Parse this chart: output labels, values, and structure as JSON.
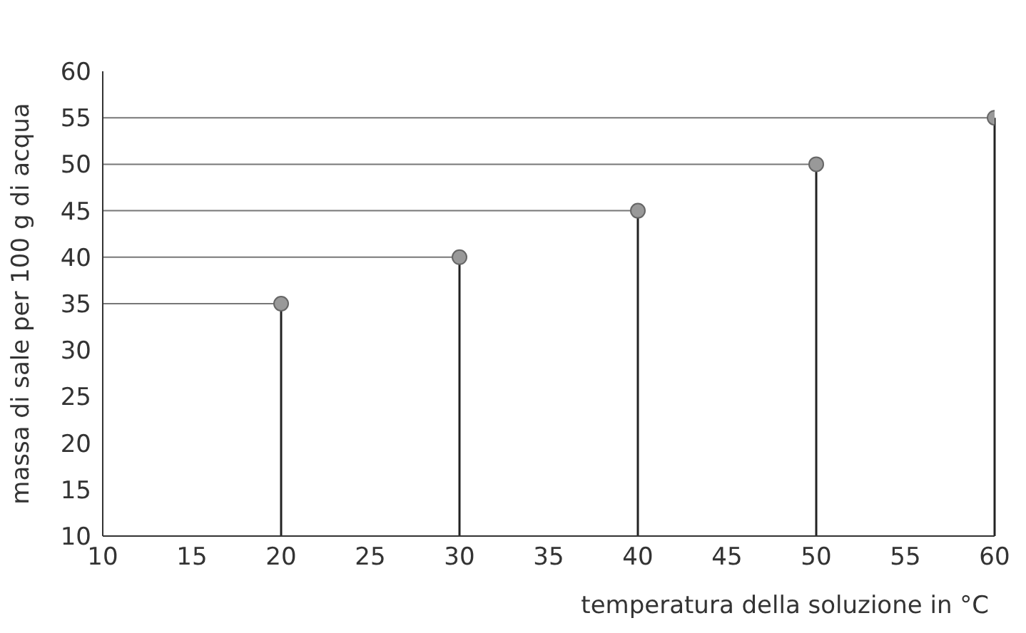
{
  "chart_data": {
    "type": "lollipop",
    "xlabel": "temperatura della soluzione in °C",
    "ylabel": "massa di sale per 100 g di acqua",
    "x": [
      20,
      30,
      40,
      50,
      60
    ],
    "values": [
      35,
      40,
      45,
      50,
      55
    ],
    "color": "#999999",
    "xlim": [
      10,
      60
    ],
    "xticks": [
      10,
      15,
      20,
      25,
      30,
      35,
      40,
      45,
      50,
      55,
      60
    ],
    "ylim": [
      10,
      60
    ],
    "yticks": [
      10,
      15,
      20,
      25,
      30,
      35,
      40,
      45,
      50,
      55,
      60
    ],
    "ref_lines": [
      {
        "axis": "y",
        "value": 35,
        "color": "#777777"
      },
      {
        "axis": "y",
        "value": 40,
        "color": "#777777"
      },
      {
        "axis": "y",
        "value": 45,
        "color": "#777777"
      },
      {
        "axis": "y",
        "value": 50,
        "color": "#777777"
      },
      {
        "axis": "y",
        "value": 55,
        "color": "#777777"
      }
    ],
    "marker": "circle"
  }
}
